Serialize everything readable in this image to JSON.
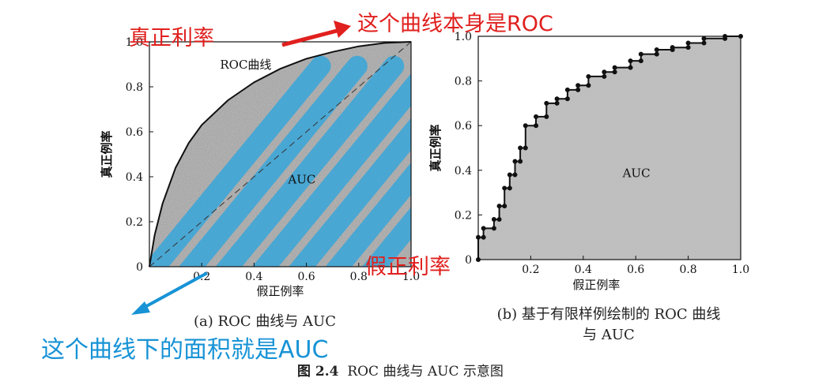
{
  "annotations": {
    "tpr_note": "真正利率",
    "roc_note": "这个曲线本身是ROC",
    "fpr_note": "假正利率",
    "auc_note": "这个曲线下的面积就是AUC"
  },
  "figure": {
    "caption_label": "图 2.4",
    "caption_text": "ROC 曲线与 AUC 示意图",
    "left_panel": {
      "subcaption": "(a) ROC 曲线与 AUC",
      "curve_label": "ROC曲线",
      "area_label": "AUC"
    },
    "right_panel": {
      "subcaption_line1": "(b) 基于有限样例绘制的 ROC 曲线",
      "subcaption_line2": "与 AUC",
      "area_label": "AUC"
    }
  },
  "chart_data": [
    {
      "type": "area",
      "xlabel": "假正例率",
      "ylabel": "真正例率",
      "xlim": [
        0,
        1
      ],
      "ylim": [
        0,
        1
      ],
      "xticks": [
        "0",
        "0.2",
        "0.4",
        "0.6",
        "0.8",
        "1.0"
      ],
      "yticks": [
        "0",
        "0.2",
        "0.4",
        "0.6",
        "0.8",
        "1.0"
      ],
      "diagonal": true,
      "series": [
        {
          "name": "ROC曲线",
          "x": [
            0,
            0.02,
            0.05,
            0.1,
            0.15,
            0.2,
            0.3,
            0.4,
            0.5,
            0.6,
            0.7,
            0.8,
            0.9,
            1.0
          ],
          "y": [
            0,
            0.14,
            0.28,
            0.44,
            0.55,
            0.63,
            0.74,
            0.82,
            0.88,
            0.925,
            0.955,
            0.98,
            0.995,
            1.0
          ]
        }
      ]
    },
    {
      "type": "line",
      "xlabel": "假正例率",
      "ylabel": "真正例率",
      "xlim": [
        0,
        1
      ],
      "ylim": [
        0,
        1
      ],
      "xticks": [
        "0.2",
        "0.4",
        "0.6",
        "0.8",
        "1.0"
      ],
      "yticks": [
        "0",
        "0.2",
        "0.4",
        "0.6",
        "0.8",
        "1.0"
      ],
      "series": [
        {
          "x": [
            0,
            0,
            0.02,
            0.02,
            0.06,
            0.06,
            0.08,
            0.08,
            0.1,
            0.1,
            0.12,
            0.12,
            0.14,
            0.14,
            0.16,
            0.16,
            0.18,
            0.18,
            0.22,
            0.22,
            0.26,
            0.26,
            0.3,
            0.3,
            0.34,
            0.34,
            0.38,
            0.38,
            0.42,
            0.42,
            0.48,
            0.48,
            0.52,
            0.52,
            0.58,
            0.58,
            0.62,
            0.62,
            0.68,
            0.68,
            0.74,
            0.74,
            0.8,
            0.8,
            0.86,
            0.86,
            0.94,
            0.94,
            1.0
          ],
          "y": [
            0,
            0.1,
            0.1,
            0.14,
            0.14,
            0.18,
            0.18,
            0.24,
            0.24,
            0.32,
            0.32,
            0.38,
            0.38,
            0.44,
            0.44,
            0.5,
            0.5,
            0.6,
            0.6,
            0.64,
            0.64,
            0.7,
            0.7,
            0.72,
            0.72,
            0.76,
            0.76,
            0.78,
            0.78,
            0.82,
            0.82,
            0.84,
            0.84,
            0.86,
            0.86,
            0.89,
            0.89,
            0.92,
            0.92,
            0.94,
            0.94,
            0.95,
            0.95,
            0.97,
            0.97,
            0.99,
            0.99,
            1.0,
            1.0
          ]
        }
      ]
    }
  ]
}
